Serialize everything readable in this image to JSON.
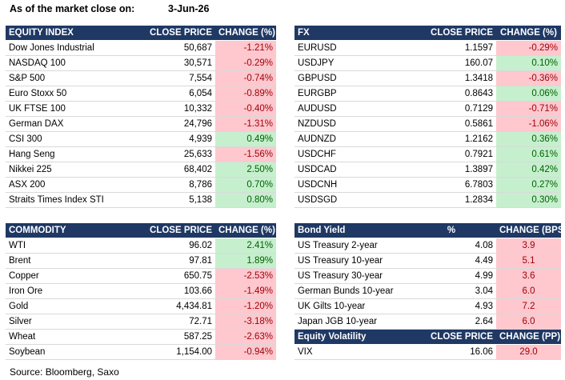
{
  "header": {
    "title": "As of the market close on:",
    "date": "3-Jun-26"
  },
  "equity": {
    "headers": [
      "EQUITY INDEX",
      "CLOSE PRICE",
      "CHANGE (%)"
    ],
    "rows": [
      {
        "name": "Dow Jones Industrial",
        "price": "50,687",
        "change": "-1.21%",
        "dir": "neg"
      },
      {
        "name": "NASDAQ 100",
        "price": "30,571",
        "change": "-0.29%",
        "dir": "neg"
      },
      {
        "name": "S&P 500",
        "price": "7,554",
        "change": "-0.74%",
        "dir": "neg"
      },
      {
        "name": "Euro Stoxx 50",
        "price": "6,054",
        "change": "-0.89%",
        "dir": "neg"
      },
      {
        "name": "UK FTSE 100",
        "price": "10,332",
        "change": "-0.40%",
        "dir": "neg"
      },
      {
        "name": "German DAX",
        "price": "24,796",
        "change": "-1.31%",
        "dir": "neg"
      },
      {
        "name": "CSI 300",
        "price": "4,939",
        "change": "0.49%",
        "dir": "pos"
      },
      {
        "name": "Hang Seng",
        "price": "25,633",
        "change": "-1.56%",
        "dir": "neg"
      },
      {
        "name": "Nikkei 225",
        "price": "68,402",
        "change": "2.50%",
        "dir": "pos"
      },
      {
        "name": "ASX 200",
        "price": "8,786",
        "change": "0.70%",
        "dir": "pos"
      },
      {
        "name": "Straits Times Index STI",
        "price": "5,138",
        "change": "0.80%",
        "dir": "pos"
      }
    ]
  },
  "fx": {
    "headers": [
      "FX",
      "CLOSE PRICE",
      "CHANGE (%)"
    ],
    "rows": [
      {
        "name": "EURUSD",
        "price": "1.1597",
        "change": "-0.29%",
        "dir": "neg"
      },
      {
        "name": "USDJPY",
        "price": "160.07",
        "change": "0.10%",
        "dir": "pos"
      },
      {
        "name": "GBPUSD",
        "price": "1.3418",
        "change": "-0.36%",
        "dir": "neg"
      },
      {
        "name": "EURGBP",
        "price": "0.8643",
        "change": "0.06%",
        "dir": "pos"
      },
      {
        "name": "AUDUSD",
        "price": "0.7129",
        "change": "-0.71%",
        "dir": "neg"
      },
      {
        "name": "NZDUSD",
        "price": "0.5861",
        "change": "-1.06%",
        "dir": "neg"
      },
      {
        "name": "AUDNZD",
        "price": "1.2162",
        "change": "0.36%",
        "dir": "pos"
      },
      {
        "name": "USDCHF",
        "price": "0.7921",
        "change": "0.61%",
        "dir": "pos"
      },
      {
        "name": "USDCAD",
        "price": "1.3897",
        "change": "0.42%",
        "dir": "pos"
      },
      {
        "name": "USDCNH",
        "price": "6.7803",
        "change": "0.27%",
        "dir": "pos"
      },
      {
        "name": "USDSGD",
        "price": "1.2834",
        "change": "0.30%",
        "dir": "pos"
      }
    ]
  },
  "commodity": {
    "headers": [
      "COMMODITY",
      "CLOSE PRICE",
      "CHANGE (%)"
    ],
    "rows": [
      {
        "name": "WTI",
        "price": "96.02",
        "change": "2.41%",
        "dir": "pos"
      },
      {
        "name": "Brent",
        "price": "97.81",
        "change": "1.89%",
        "dir": "pos"
      },
      {
        "name": "Copper",
        "price": "650.75",
        "change": "-2.53%",
        "dir": "neg"
      },
      {
        "name": "Iron Ore",
        "price": "103.66",
        "change": "-1.49%",
        "dir": "neg"
      },
      {
        "name": "Gold",
        "price": "4,434.81",
        "change": "-1.20%",
        "dir": "neg"
      },
      {
        "name": "Silver",
        "price": "72.71",
        "change": "-3.18%",
        "dir": "neg"
      },
      {
        "name": "Wheat",
        "price": "587.25",
        "change": "-2.63%",
        "dir": "neg"
      },
      {
        "name": "Soybean",
        "price": "1,154.00",
        "change": "-0.94%",
        "dir": "neg"
      }
    ]
  },
  "bonds": {
    "headers": [
      "Bond Yield",
      "%",
      "CHANGE (BPS)"
    ],
    "rows": [
      {
        "name": "US Treasury 2-year",
        "price": "4.08",
        "change": "3.9",
        "dir": "neg"
      },
      {
        "name": "US Treasury 10-year",
        "price": "4.49",
        "change": "5.1",
        "dir": "neg"
      },
      {
        "name": "US Treasury 30-year",
        "price": "4.99",
        "change": "3.6",
        "dir": "neg"
      },
      {
        "name": "German Bunds 10-year",
        "price": "3.04",
        "change": "6.0",
        "dir": "neg"
      },
      {
        "name": "UK Gilts 10-year",
        "price": "4.93",
        "change": "7.2",
        "dir": "neg"
      },
      {
        "name": "Japan JGB 10-year",
        "price": "2.64",
        "change": "6.0",
        "dir": "neg"
      }
    ]
  },
  "volatility": {
    "headers": [
      "Equity Volatility",
      "CLOSE PRICE",
      "CHANGE (PP)"
    ],
    "rows": [
      {
        "name": "VIX",
        "price": "16.06",
        "change": "29.0",
        "dir": "neg"
      }
    ]
  },
  "footer": {
    "source": "Source: Bloomberg, Saxo"
  }
}
